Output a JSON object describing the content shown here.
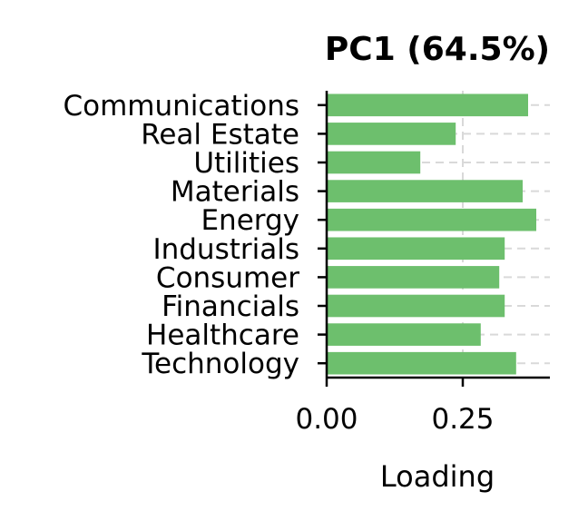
{
  "chart_data": {
    "type": "bar",
    "orientation": "horizontal",
    "title": "PC1 (64.5%)",
    "xlabel": "Loading",
    "ylabel": "",
    "categories": [
      "Technology",
      "Healthcare",
      "Financials",
      "Consumer",
      "Industrials",
      "Energy",
      "Materials",
      "Utilities",
      "Real Estate",
      "Communications"
    ],
    "values": [
      0.348,
      0.283,
      0.327,
      0.317,
      0.327,
      0.385,
      0.36,
      0.172,
      0.237,
      0.37
    ],
    "xlim": [
      0,
      0.41
    ],
    "xticks": [
      0.0,
      0.25
    ],
    "xtick_labels": [
      "0.00",
      "0.25"
    ],
    "bar_color": "#6dbf6d",
    "grid": true
  }
}
